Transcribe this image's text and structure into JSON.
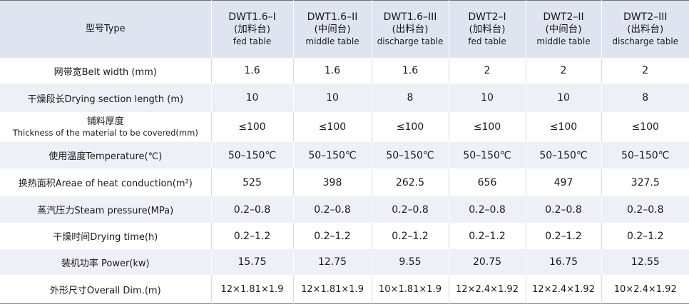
{
  "header": {
    "label": "型号Type",
    "models": [
      {
        "code": "DWT1.6–I",
        "cn": "(加料台)",
        "en": "fed table"
      },
      {
        "code": "DWT1.6–II",
        "cn": "(中间台)",
        "en": "middle table"
      },
      {
        "code": "DWT1.6–III",
        "cn": "(出料台)",
        "en": "discharge table"
      },
      {
        "code": "DWT2–I",
        "cn": "(加料台)",
        "en": "fed table"
      },
      {
        "code": "DWT2–II",
        "cn": "(中间台)",
        "en": "middle table"
      },
      {
        "code": "DWT2–III",
        "cn": "(出料台)",
        "en": "discharge table"
      }
    ]
  },
  "rows": [
    {
      "label": "网带宽Belt width (mm)",
      "values": [
        "1.6",
        "1.6",
        "1.6",
        "2",
        "2",
        "2"
      ]
    },
    {
      "label": "干燥段长Drying section length (m)",
      "values": [
        "10",
        "10",
        "8",
        "10",
        "10",
        "8"
      ]
    },
    {
      "label": "铺料厚度",
      "label_sub": "Thickness of the material to be covered(mm)",
      "values": [
        "≤100",
        "≤100",
        "≤100",
        "≤100",
        "≤100",
        "≤100"
      ]
    },
    {
      "label": "使用温度Temperature(℃)",
      "values": [
        "50–150℃",
        "50–150℃",
        "50–150℃",
        "50–150℃",
        "50–150℃",
        "50–150℃"
      ]
    },
    {
      "label": "换热面积Areae of heat conduction(m²)",
      "values": [
        "525",
        "398",
        "262.5",
        "656",
        "497",
        "327.5"
      ]
    },
    {
      "label": "蒸汽压力Steam pressure(MPa)",
      "values": [
        "0.2–0.8",
        "0.2–0.8",
        "0.2–0.8",
        "0.2–0.8",
        "0.2–0.8",
        "0.2–0.8"
      ]
    },
    {
      "label": "干燥时间Drying time(h)",
      "values": [
        "0.2–1.2",
        "0.2–1.2",
        "0.2–1.2",
        "0.2–1.2",
        "0.2–1.2",
        "0.2–1.2"
      ]
    },
    {
      "label": "装机功率 Power(kw)",
      "values": [
        "15.75",
        "12.75",
        "9.55",
        "20.75",
        "16.75",
        "12.55"
      ]
    },
    {
      "label": "外形尺寸Overall Dim.(m)",
      "values": [
        "12×1.81×1.9",
        "12×1.81×1.9",
        "10×1.81×1.9",
        "12×2.4×1.92",
        "12×2.4×1.92",
        "10×2.4×1.92"
      ]
    }
  ]
}
